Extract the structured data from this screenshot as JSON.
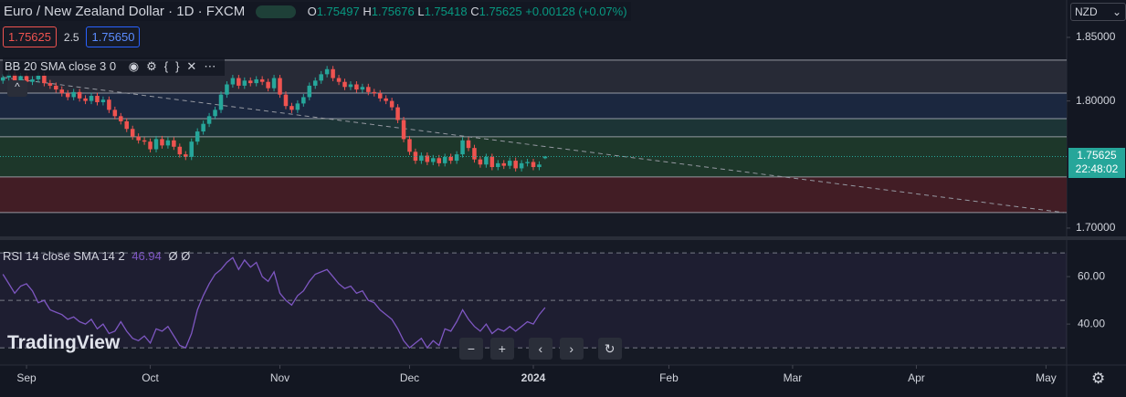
{
  "header": {
    "symbol": "Euro / New Zealand Dollar · 1D · FXCM",
    "ohlc_labels": [
      "O",
      "H",
      "L",
      "C"
    ],
    "change": "+0.00128 (+0.07%)",
    "spread": 2.5,
    "buy": "1.75650",
    "currency": "NZD",
    "countdown": "22:48:02",
    "bb_legend": "BB 20 SMA close 3 0",
    "rsi_legend": "RSI 14 close SMA 14 2",
    "rsi_extra": "Ø Ø",
    "logo": "TradingView"
  },
  "chart_data": [
    {
      "type": "candlestick",
      "xlim": [
        -0.5,
        180.5
      ],
      "xticks": [
        {
          "value": 4,
          "label": "Sep"
        },
        {
          "value": 25,
          "label": "Oct"
        },
        {
          "value": 47,
          "label": "Nov"
        },
        {
          "value": 69,
          "label": "Dec"
        },
        {
          "value": 90,
          "label": "2024"
        },
        {
          "value": 113,
          "label": "Feb"
        },
        {
          "value": 134,
          "label": "Mar"
        },
        {
          "value": 155,
          "label": "Apr"
        },
        {
          "value": 177,
          "label": "May"
        }
      ],
      "ylim": [
        1.6942,
        1.8794
      ],
      "yticks": [
        {
          "value": 1.85,
          "label": "1.85000"
        },
        {
          "value": 1.8,
          "label": "1.80000"
        },
        {
          "value": 1.7,
          "label": "1.70000"
        }
      ],
      "up_color": "#26a69a",
      "down_color": "#ef5350",
      "levels": [
        1.8321,
        1.8062,
        1.7861,
        1.7718,
        1.7402,
        1.7122
      ],
      "zone_colors": [
        "#2a2e39",
        "#1c2a44",
        "#1d3a3a",
        "#1e3d2c",
        "#4a1e26"
      ],
      "trendline": {
        "x": [
          0,
          180
        ],
        "values": [
          1.8185,
          1.7122
        ]
      },
      "candles": [
        [
          1.816,
          1.821,
          1.8135,
          1.8185
        ],
        [
          1.8185,
          1.8235,
          1.816,
          1.821
        ],
        [
          1.821,
          1.8235,
          1.8135,
          1.816
        ],
        [
          1.816,
          1.822,
          1.8135,
          1.8195
        ],
        [
          1.8195,
          1.822,
          1.8125,
          1.815
        ],
        [
          1.815,
          1.8195,
          1.8125,
          1.817
        ],
        [
          1.817,
          1.8225,
          1.8145,
          1.82
        ],
        [
          1.82,
          1.8225,
          1.8115,
          1.814
        ],
        [
          1.814,
          1.8165,
          1.8095,
          1.812
        ],
        [
          1.812,
          1.8145,
          1.8065,
          1.809
        ],
        [
          1.809,
          1.8115,
          1.8035,
          1.806
        ],
        [
          1.806,
          1.8085,
          1.8005,
          1.803
        ],
        [
          1.803,
          1.8095,
          1.8005,
          1.807
        ],
        [
          1.807,
          1.8095,
          1.7995,
          1.802
        ],
        [
          1.802,
          1.8045,
          1.7975,
          1.8
        ],
        [
          1.8,
          1.8065,
          1.7975,
          1.804
        ],
        [
          1.804,
          1.8065,
          1.7965,
          1.799
        ],
        [
          1.799,
          1.8035,
          1.7965,
          1.801
        ],
        [
          1.801,
          1.8035,
          1.7905,
          1.793
        ],
        [
          1.793,
          1.7955,
          1.7855,
          1.788
        ],
        [
          1.788,
          1.7905,
          1.7815,
          1.784
        ],
        [
          1.784,
          1.7865,
          1.7755,
          1.778
        ],
        [
          1.778,
          1.7805,
          1.7695,
          1.772
        ],
        [
          1.772,
          1.7745,
          1.7665,
          1.769
        ],
        [
          1.769,
          1.7715,
          1.7655,
          1.768
        ],
        [
          1.768,
          1.7705,
          1.7595,
          1.762
        ],
        [
          1.762,
          1.7725,
          1.7595,
          1.77
        ],
        [
          1.77,
          1.7725,
          1.7625,
          1.765
        ],
        [
          1.765,
          1.7715,
          1.7625,
          1.769
        ],
        [
          1.769,
          1.7715,
          1.7615,
          1.764
        ],
        [
          1.764,
          1.7665,
          1.7555,
          1.758
        ],
        [
          1.758,
          1.7605,
          1.7535,
          1.756
        ],
        [
          1.756,
          1.7705,
          1.7535,
          1.768
        ],
        [
          1.768,
          1.7785,
          1.7655,
          1.776
        ],
        [
          1.776,
          1.7845,
          1.7735,
          1.782
        ],
        [
          1.782,
          1.7905,
          1.7795,
          1.788
        ],
        [
          1.788,
          1.7955,
          1.7855,
          1.793
        ],
        [
          1.793,
          1.8075,
          1.7905,
          1.805
        ],
        [
          1.805,
          1.8155,
          1.8025,
          1.813
        ],
        [
          1.813,
          1.8205,
          1.8105,
          1.818
        ],
        [
          1.818,
          1.8205,
          1.8095,
          1.812
        ],
        [
          1.812,
          1.8185,
          1.8095,
          1.816
        ],
        [
          1.816,
          1.8185,
          1.8115,
          1.814
        ],
        [
          1.814,
          1.8195,
          1.8115,
          1.817
        ],
        [
          1.817,
          1.8195,
          1.8125,
          1.815
        ],
        [
          1.815,
          1.8175,
          1.8075,
          1.81
        ],
        [
          1.81,
          1.8205,
          1.8075,
          1.818
        ],
        [
          1.818,
          1.8205,
          1.8025,
          1.805
        ],
        [
          1.805,
          1.8075,
          1.7935,
          1.796
        ],
        [
          1.796,
          1.7985,
          1.7905,
          1.793
        ],
        [
          1.793,
          1.8005,
          1.7905,
          1.798
        ],
        [
          1.798,
          1.8055,
          1.7955,
          1.803
        ],
        [
          1.803,
          1.8145,
          1.8005,
          1.812
        ],
        [
          1.812,
          1.8185,
          1.8095,
          1.816
        ],
        [
          1.816,
          1.8235,
          1.8135,
          1.821
        ],
        [
          1.821,
          1.8275,
          1.8185,
          1.825
        ],
        [
          1.825,
          1.8275,
          1.8155,
          1.818
        ],
        [
          1.818,
          1.8205,
          1.8125,
          1.815
        ],
        [
          1.815,
          1.8175,
          1.8085,
          1.811
        ],
        [
          1.811,
          1.8155,
          1.8085,
          1.813
        ],
        [
          1.813,
          1.8155,
          1.8065,
          1.809
        ],
        [
          1.809,
          1.8135,
          1.8065,
          1.811
        ],
        [
          1.811,
          1.8135,
          1.8045,
          1.807
        ],
        [
          1.807,
          1.8095,
          1.8035,
          1.806
        ],
        [
          1.806,
          1.8085,
          1.7995,
          1.802
        ],
        [
          1.802,
          1.8045,
          1.7975,
          1.8
        ],
        [
          1.8,
          1.8025,
          1.7925,
          1.795
        ],
        [
          1.795,
          1.7975,
          1.7825,
          1.785
        ],
        [
          1.785,
          1.7875,
          1.7675,
          1.77
        ],
        [
          1.77,
          1.7725,
          1.7575,
          1.76
        ],
        [
          1.76,
          1.7625,
          1.7505,
          1.753
        ],
        [
          1.753,
          1.7595,
          1.7505,
          1.757
        ],
        [
          1.757,
          1.7595,
          1.7495,
          1.752
        ],
        [
          1.752,
          1.7575,
          1.7495,
          1.755
        ],
        [
          1.755,
          1.7575,
          1.7485,
          1.751
        ],
        [
          1.751,
          1.7585,
          1.7485,
          1.756
        ],
        [
          1.756,
          1.7585,
          1.7505,
          1.753
        ],
        [
          1.753,
          1.7605,
          1.7505,
          1.758
        ],
        [
          1.758,
          1.7715,
          1.7555,
          1.769
        ],
        [
          1.769,
          1.7715,
          1.7605,
          1.763
        ],
        [
          1.763,
          1.7655,
          1.7515,
          1.754
        ],
        [
          1.754,
          1.7565,
          1.7475,
          1.75
        ],
        [
          1.75,
          1.7585,
          1.7475,
          1.756
        ],
        [
          1.756,
          1.7585,
          1.7455,
          1.748
        ],
        [
          1.748,
          1.7535,
          1.7455,
          1.751
        ],
        [
          1.751,
          1.7535,
          1.7465,
          1.749
        ],
        [
          1.749,
          1.7555,
          1.7465,
          1.753
        ],
        [
          1.753,
          1.7555,
          1.7445,
          1.747
        ],
        [
          1.747,
          1.7535,
          1.7445,
          1.751
        ],
        [
          1.751,
          1.7545,
          1.7485,
          1.752
        ],
        [
          1.752,
          1.7545,
          1.7455,
          1.748
        ],
        [
          1.748,
          1.7525,
          1.7455,
          1.75
        ],
        [
          1.75497,
          1.75676,
          1.75418,
          1.75625
        ]
      ]
    },
    {
      "type": "line",
      "xlim": [
        -0.5,
        180.5
      ],
      "ylim": [
        23.5,
        75.8
      ],
      "color": "#7e57c2",
      "yticks": [
        {
          "value": 60,
          "label": "60.00"
        },
        {
          "value": 40,
          "label": "40.00"
        }
      ],
      "levels": [
        70,
        50,
        30
      ],
      "values": [
        61,
        57,
        53,
        56,
        57,
        54,
        49,
        50,
        46,
        45,
        44,
        42,
        43,
        41,
        40,
        42,
        38,
        40,
        36,
        37,
        41,
        37,
        34,
        33,
        35,
        32,
        38,
        37,
        39,
        35,
        31,
        30,
        36,
        46,
        52,
        57,
        61,
        63,
        66,
        68,
        63,
        67,
        64,
        66,
        60,
        58,
        62,
        53,
        50,
        48,
        52,
        54,
        58,
        61,
        62,
        63,
        60,
        57,
        55,
        56,
        53,
        54,
        50,
        49,
        46,
        44,
        42,
        38,
        33,
        30,
        32,
        34,
        30,
        33,
        31,
        38,
        37,
        41,
        46,
        42,
        39,
        37,
        40,
        36,
        38,
        37,
        39,
        37,
        39,
        41,
        40,
        44,
        46.94
      ]
    }
  ]
}
